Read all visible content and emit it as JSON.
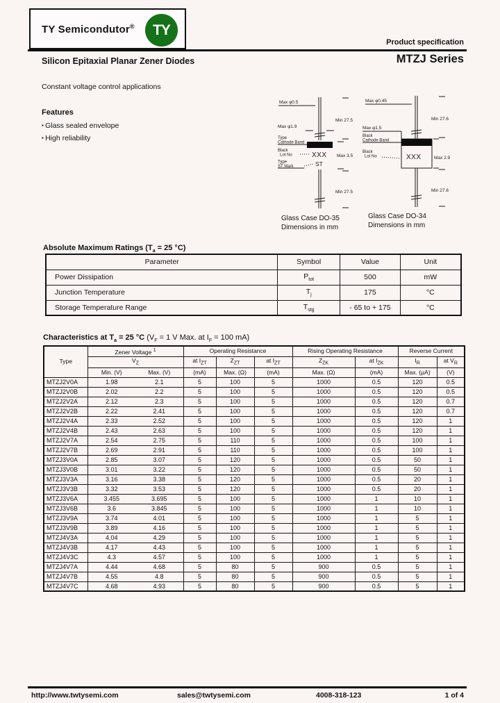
{
  "header": {
    "logo_text": "TY Semicondutor",
    "logo_reg": "®",
    "logo_badge": "TY",
    "product_spec": "Product specification",
    "doc_title": "Silicon Epitaxial Planar Zener Diodes",
    "series_title": "MTZJ Series",
    "application": "Constant voltage control applications"
  },
  "features": {
    "heading": "Features",
    "items": [
      "Glass sealed envelope",
      "High reliability"
    ]
  },
  "packages": {
    "do35": {
      "caption1": "Glass Case DO-35",
      "caption2": "Dimensions in mm",
      "dim_lead_dia": "Max φ0.5",
      "dim_body_dia": "Max φ1.9",
      "dim_lead_top": "Min 27.5",
      "dim_lead_bot": "Min 27.5",
      "dim_body_len": "Max 3.5",
      "ann_band_l1": "Type",
      "ann_band_l2": "Cathode Band",
      "ann_mark_l1": "Black",
      "ann_mark_l2": "Lot No",
      "ann_st_l1": "Type",
      "ann_st_l2": "ST Mark",
      "marking": "XXX",
      "marking_st": "ST"
    },
    "do34": {
      "caption1": "Glass Case DO-34",
      "caption2": "Dimensions in mm",
      "dim_lead_dia": "Max φ0.45",
      "dim_body_dia": "Max φ1.5",
      "dim_lead_top": "Min 27.6",
      "dim_lead_bot": "Min 27.6",
      "dim_body_len": "Max 2.9",
      "ann_band_l1": "Black",
      "ann_band_l2": "Cathode Band",
      "ann_mark_l1": "Black",
      "ann_mark_l2": "Lot No",
      "marking": "XXX"
    }
  },
  "abs_max": {
    "title": [
      {
        "t": "Absolute Maximum Ratings (T",
        "sub": "a"
      },
      {
        "t": " = 25 °C)",
        "sub": ""
      }
    ],
    "headers": [
      "Parameter",
      "Symbol",
      "Value",
      "Unit"
    ],
    "rows": [
      {
        "param": "Power Dissipation",
        "sym": [
          "P",
          "tot"
        ],
        "value": "500",
        "unit": "mW"
      },
      {
        "param": "Junction Temperature",
        "sym": [
          "T",
          "j"
        ],
        "value": "175",
        "unit": "°C"
      },
      {
        "param": "Storage Temperature Range",
        "sym": [
          "T",
          "stg"
        ],
        "value": "- 65 to + 175",
        "unit": "°C"
      }
    ]
  },
  "characteristics": {
    "title_bold": [
      {
        "t": "Characteristics at T",
        "sub": "a"
      },
      {
        "t": " = 25 °C",
        "sub": ""
      }
    ],
    "title_normal": [
      {
        "t": " (V",
        "sub": "F"
      },
      {
        "t": " = 1 V Max. at I",
        "sub": "F"
      },
      {
        "t": " = 100 mA)",
        "sub": ""
      }
    ],
    "h1": {
      "type": "Type",
      "zener": "Zener Voltage ",
      "zener_sup": "1",
      "op": "Operating Resistance",
      "rising": "Rising Operating Resistance",
      "reverse": "Reverse Current"
    },
    "h2": {
      "vz": [
        "V",
        "Z"
      ],
      "at_izt": [
        "at I",
        "ZT"
      ],
      "zzt": [
        "Z",
        "ZT"
      ],
      "zzk": [
        "Z",
        "ZK"
      ],
      "at_izk": [
        "at I",
        "ZK"
      ],
      "ir": [
        "I",
        "R"
      ],
      "at_vr": [
        "at V",
        "R"
      ]
    },
    "h3": [
      "Min. (V)",
      "Max. (V)",
      "(mA)",
      "Max. (Ω)",
      "(mA)",
      "Max. (Ω)",
      "(mA)",
      "Max. (µA)",
      "(V)"
    ],
    "rows": [
      [
        "MTZJ2V0A",
        "1.98",
        "2.1",
        "5",
        "100",
        "5",
        "1000",
        "0.5",
        "120",
        "0.5"
      ],
      [
        "MTZJ2V0B",
        "2.02",
        "2.2",
        "5",
        "100",
        "5",
        "1000",
        "0.5",
        "120",
        "0.5"
      ],
      [
        "MTZJ2V2A",
        "2.12",
        "2.3",
        "5",
        "100",
        "5",
        "1000",
        "0.5",
        "120",
        "0.7"
      ],
      [
        "MTZJ2V2B",
        "2.22",
        "2.41",
        "5",
        "100",
        "5",
        "1000",
        "0.5",
        "120",
        "0.7"
      ],
      [
        "MTZJ2V4A",
        "2.33",
        "2.52",
        "5",
        "100",
        "5",
        "1000",
        "0.5",
        "120",
        "1"
      ],
      [
        "MTZJ2V4B",
        "2.43",
        "2.63",
        "5",
        "100",
        "5",
        "1000",
        "0.5",
        "120",
        "1"
      ],
      [
        "MTZJ2V7A",
        "2.54",
        "2.75",
        "5",
        "110",
        "5",
        "1000",
        "0.5",
        "100",
        "1"
      ],
      [
        "MTZJ2V7B",
        "2.69",
        "2.91",
        "5",
        "110",
        "5",
        "1000",
        "0.5",
        "100",
        "1"
      ],
      [
        "MTZJ3V0A",
        "2.85",
        "3.07",
        "5",
        "120",
        "5",
        "1000",
        "0.5",
        "50",
        "1"
      ],
      [
        "MTZJ3V0B",
        "3.01",
        "3.22",
        "5",
        "120",
        "5",
        "1000",
        "0.5",
        "50",
        "1"
      ],
      [
        "MTZJ3V3A",
        "3.16",
        "3.38",
        "5",
        "120",
        "5",
        "1000",
        "0.5",
        "20",
        "1"
      ],
      [
        "MTZJ3V3B",
        "3.32",
        "3.53",
        "5",
        "120",
        "5",
        "1000",
        "0.5",
        "20",
        "1"
      ],
      [
        "MTZJ3V6A",
        "3.455",
        "3.695",
        "5",
        "100",
        "5",
        "1000",
        "1",
        "10",
        "1"
      ],
      [
        "MTZJ3V6B",
        "3.6",
        "3.845",
        "5",
        "100",
        "5",
        "1000",
        "1",
        "10",
        "1"
      ],
      [
        "MTZJ3V9A",
        "3.74",
        "4.01",
        "5",
        "100",
        "5",
        "1000",
        "1",
        "5",
        "1"
      ],
      [
        "MTZJ3V9B",
        "3.89",
        "4.16",
        "5",
        "100",
        "5",
        "1000",
        "1",
        "5",
        "1"
      ],
      [
        "MTZJ4V3A",
        "4.04",
        "4.29",
        "5",
        "100",
        "5",
        "1000",
        "1",
        "5",
        "1"
      ],
      [
        "MTZJ4V3B",
        "4.17",
        "4.43",
        "5",
        "100",
        "5",
        "1000",
        "1",
        "5",
        "1"
      ],
      [
        "MTZJ4V3C",
        "4.3",
        "4.57",
        "5",
        "100",
        "5",
        "1000",
        "1",
        "5",
        "1"
      ],
      [
        "MTZJ4V7A",
        "4.44",
        "4.68",
        "5",
        "80",
        "5",
        "900",
        "0.5",
        "5",
        "1"
      ],
      [
        "MTZJ4V7B",
        "4.55",
        "4.8",
        "5",
        "80",
        "5",
        "900",
        "0.5",
        "5",
        "1"
      ],
      [
        "MTZJ4V7C",
        "4.68",
        "4.93",
        "5",
        "80",
        "5",
        "900",
        "0.5",
        "5",
        "1"
      ]
    ]
  },
  "footer": {
    "url": "http://www.twtysemi.com",
    "email": "sales@twtysemi.com",
    "phone": "4008-318-123",
    "page": "1 of 4"
  },
  "colors": {
    "logo_green": "#157218",
    "page_bg": "#faf4f3",
    "ink": "#131313"
  }
}
